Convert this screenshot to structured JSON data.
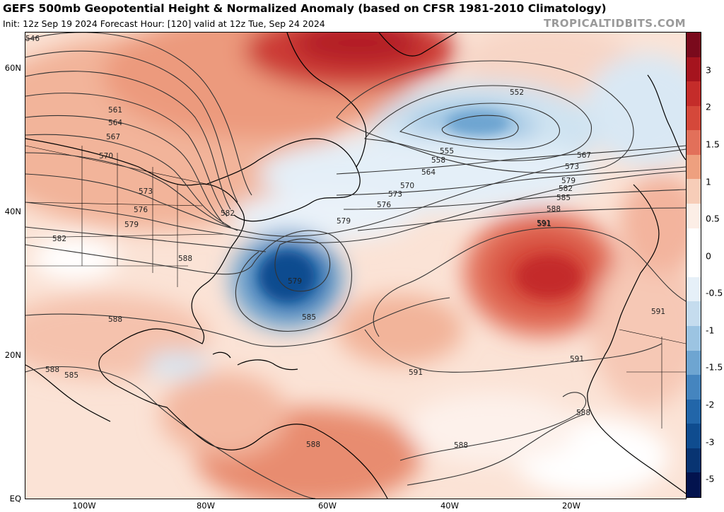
{
  "title": "GEFS 500mb Geopotential Height & Normalized Anomaly (based on CFSR 1981-2010 Climatology)",
  "subtitle": "Init: 12z Sep 19 2024   Forecast Hour: [120]   valid at 12z Tue, Sep 24 2024",
  "watermark": "TROPICALTIDBITS.COM",
  "map": {
    "latitude_labels": [
      "60N",
      "40N",
      "20N",
      "EQ"
    ],
    "longitude_labels": [
      "100W",
      "80W",
      "60W",
      "40W",
      "20W"
    ],
    "contour_labels": [
      "546",
      "561",
      "564",
      "567",
      "570",
      "573",
      "576",
      "579",
      "582",
      "582",
      "588",
      "588",
      "585",
      "579",
      "585",
      "588",
      "591",
      "591",
      "591",
      "591",
      "588",
      "588",
      "588",
      "552",
      "555",
      "558",
      "564",
      "570",
      "573",
      "576",
      "579",
      "567",
      "573",
      "579",
      "582",
      "585",
      "588",
      "591"
    ]
  },
  "colorbar": {
    "labels": [
      "3",
      "2",
      "1.5",
      "1",
      "0.5",
      "0",
      "-0.5",
      "-1",
      "-1.5",
      "-2",
      "-3",
      "-5"
    ],
    "colors": [
      "#7a0a1c",
      "#a5141e",
      "#c42c2a",
      "#d5483a",
      "#e2705a",
      "#eea07f",
      "#f7cdb8",
      "#fceee6",
      "#ffffff",
      "#ffffff",
      "#e6f0f8",
      "#c5dcee",
      "#9cc4e2",
      "#6ea5d1",
      "#4585bf",
      "#2266a9",
      "#0f4c8f",
      "#083472",
      "#03134e"
    ]
  }
}
